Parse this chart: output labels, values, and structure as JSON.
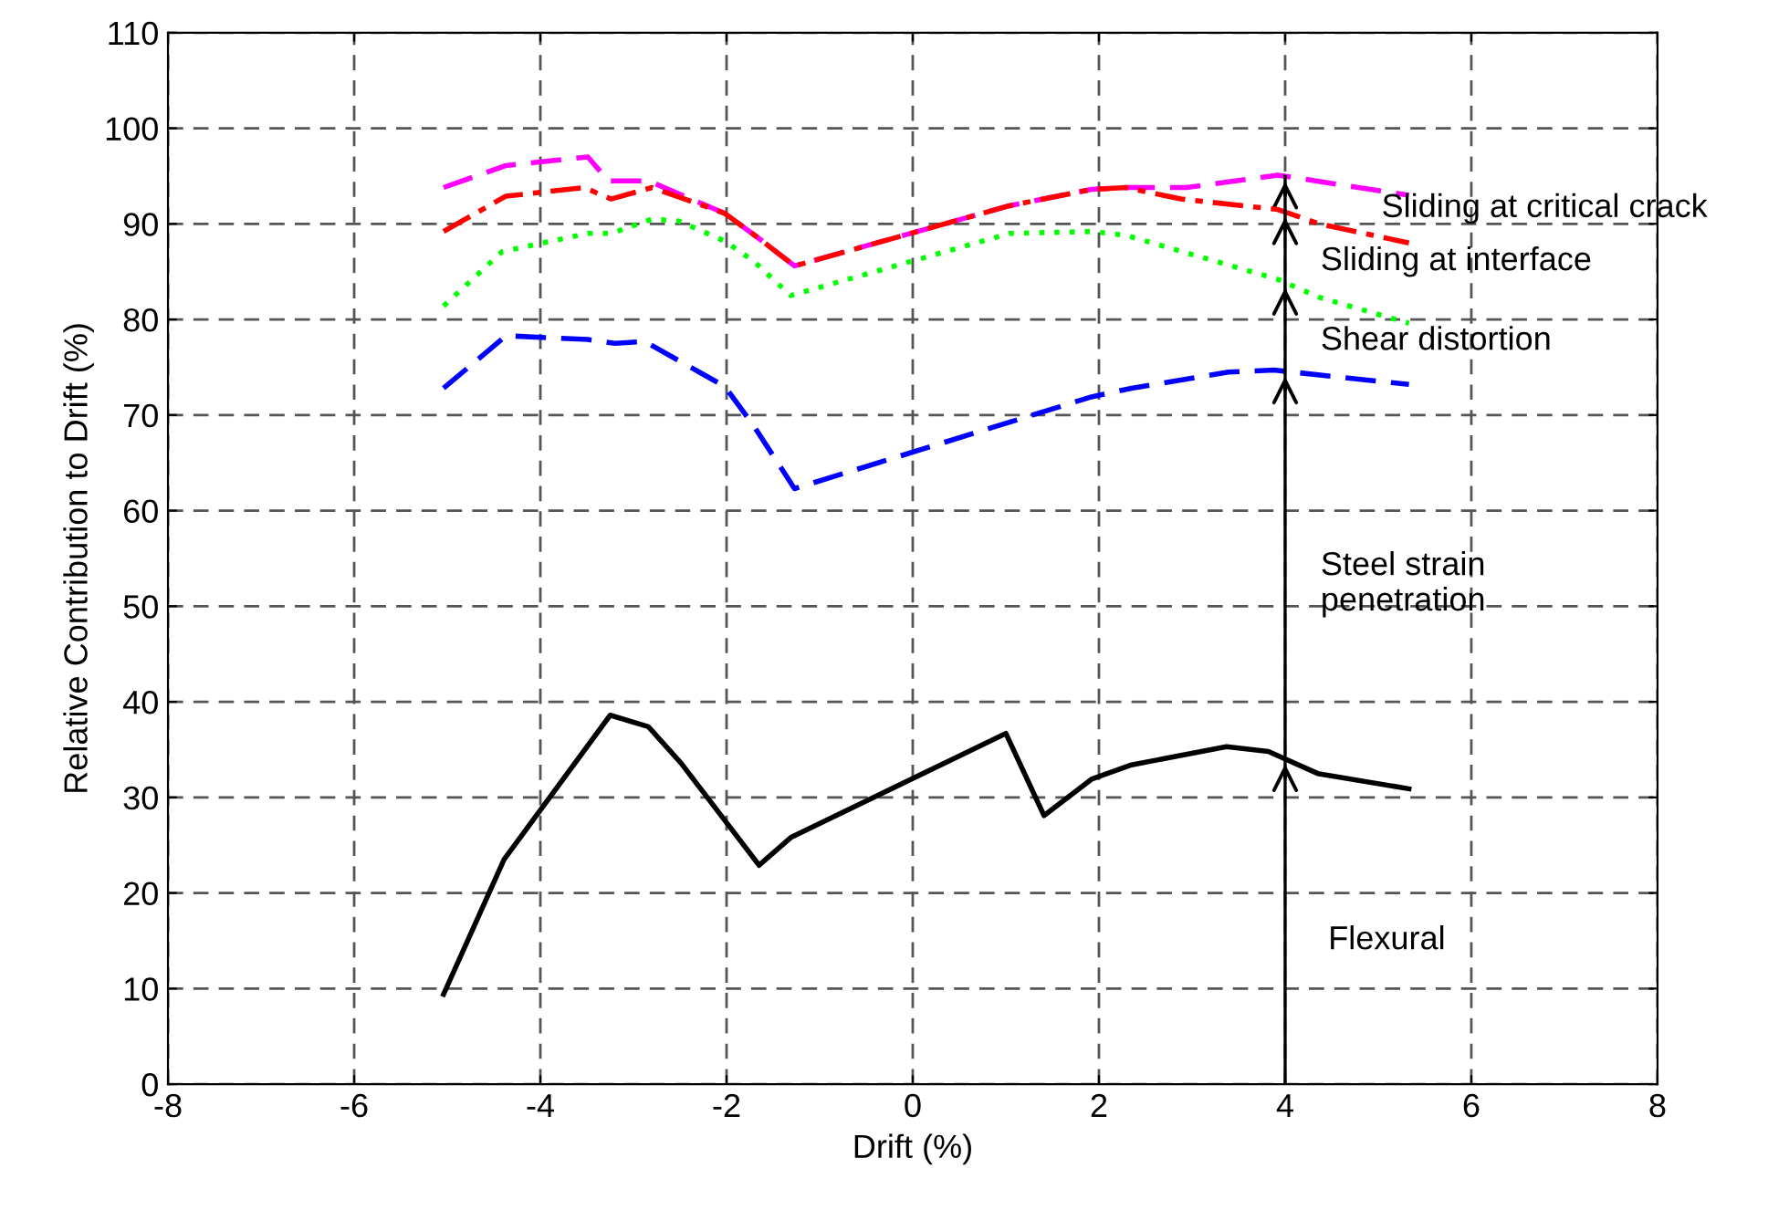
{
  "chart_data": {
    "type": "line",
    "xlabel": "Drift (%)",
    "ylabel": "Relative Contribution to Drift (%)",
    "xlim": [
      -8,
      8
    ],
    "xticks": [
      -8,
      -6,
      -4,
      -2,
      0,
      2,
      4,
      6,
      8
    ],
    "ylim": [
      0,
      110
    ],
    "yticks": [
      0,
      10,
      20,
      30,
      40,
      50,
      60,
      70,
      80,
      90,
      100,
      110
    ],
    "grid": true,
    "marker": "none",
    "series": [
      {
        "color": "#ff00ff",
        "line_style": "dashed",
        "x": [
          -5.04,
          -4.37,
          -3.49,
          -3.27,
          -2.84,
          -2.02,
          -1.67,
          -1.27,
          1.04,
          1.92,
          2.29,
          2.94,
          3.92,
          5.33
        ],
        "values": [
          93.8,
          96.1,
          97.0,
          94.5,
          94.5,
          91.1,
          88.6,
          85.6,
          91.9,
          93.6,
          93.8,
          93.8,
          95.1,
          93.0
        ]
      },
      {
        "color": "#ff0000",
        "line_style": "dashdot",
        "x": [
          -5.04,
          -4.37,
          -3.53,
          -3.24,
          -2.8,
          -2.02,
          -1.67,
          -1.27,
          1.04,
          1.92,
          2.29,
          2.88,
          3.92,
          4.37,
          5.33
        ],
        "values": [
          89.2,
          92.9,
          93.8,
          92.6,
          93.8,
          91.1,
          88.6,
          85.6,
          91.9,
          93.6,
          93.8,
          92.6,
          91.5,
          90.0,
          88.0
        ]
      },
      {
        "color": "#00ff00",
        "line_style": "dotted",
        "x": [
          -5.04,
          -4.41,
          -3.49,
          -3.24,
          -2.8,
          -2.51,
          -2.02,
          -1.71,
          -1.31,
          1.04,
          1.92,
          2.29,
          3.92,
          4.37,
          5.33
        ],
        "values": [
          81.4,
          87.1,
          89.0,
          89.0,
          90.5,
          90.3,
          88.2,
          86.1,
          82.5,
          89.0,
          89.2,
          88.8,
          84.2,
          82.3,
          79.6
        ]
      },
      {
        "color": "#0000ff",
        "line_style": "dashed",
        "x": [
          -5.04,
          -4.37,
          -3.49,
          -3.2,
          -2.88,
          -2.02,
          -1.71,
          -1.27,
          1.92,
          2.35,
          3.39,
          3.88,
          5.33
        ],
        "values": [
          72.8,
          78.3,
          77.9,
          77.5,
          77.7,
          73.0,
          68.9,
          62.3,
          71.9,
          72.8,
          74.5,
          74.7,
          73.2
        ]
      },
      {
        "color": "#000000",
        "line_style": "solid",
        "x": [
          -5.04,
          -4.39,
          -3.25,
          -2.84,
          -2.49,
          -1.65,
          -1.31,
          1.0,
          1.41,
          1.92,
          2.35,
          3.37,
          3.82,
          4.35,
          5.33
        ],
        "values": [
          9.4,
          23.5,
          38.6,
          37.4,
          33.6,
          22.9,
          25.8,
          36.7,
          28.1,
          31.9,
          33.4,
          35.3,
          34.8,
          32.5,
          30.9
        ]
      }
    ],
    "ref_lines": [
      {
        "axis": "x",
        "value": 4,
        "color": "#000000",
        "line_style": "solid"
      }
    ],
    "annotations": [
      "Sliding at critical crack",
      "Sliding at interface",
      "Shear distortion",
      "Steel strain\npenetration",
      "Flexural"
    ]
  }
}
